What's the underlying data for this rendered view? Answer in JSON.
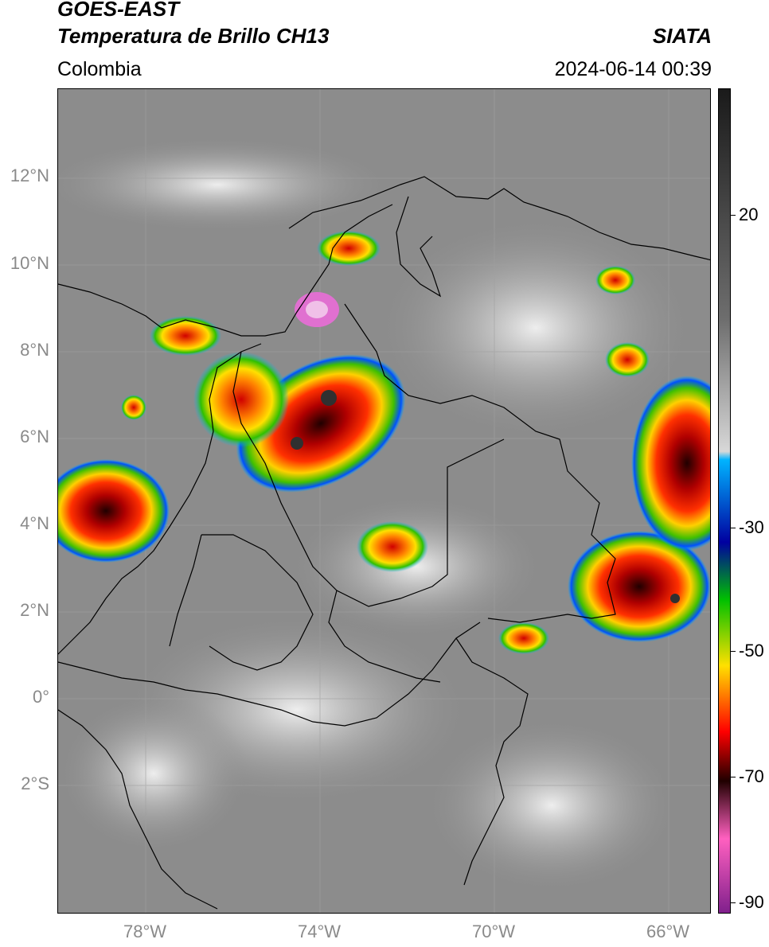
{
  "header": {
    "line1": "GOES-EAST",
    "line2": "Temperatura de Brillo CH13",
    "source": "SIATA",
    "region": "Colombia",
    "timestamp": "2024-06-14 00:39"
  },
  "map": {
    "lat_labels": [
      "12°N",
      "10°N",
      "8°N",
      "6°N",
      "4°N",
      "2°N",
      "0°",
      "2°S"
    ],
    "lon_labels": [
      "78°W",
      "74°W",
      "70°W",
      "66°W"
    ]
  },
  "colorbar": {
    "labels": [
      "20",
      "-30",
      "-50",
      "-70",
      "-90"
    ],
    "colors": [
      "#1a1a1a",
      "#6e6e6e",
      "#d8d8d8",
      "#00b4ff",
      "#0000a0",
      "#00c000",
      "#ffe000",
      "#ff0000",
      "#200000",
      "#ff60c0",
      "#80208c"
    ]
  }
}
